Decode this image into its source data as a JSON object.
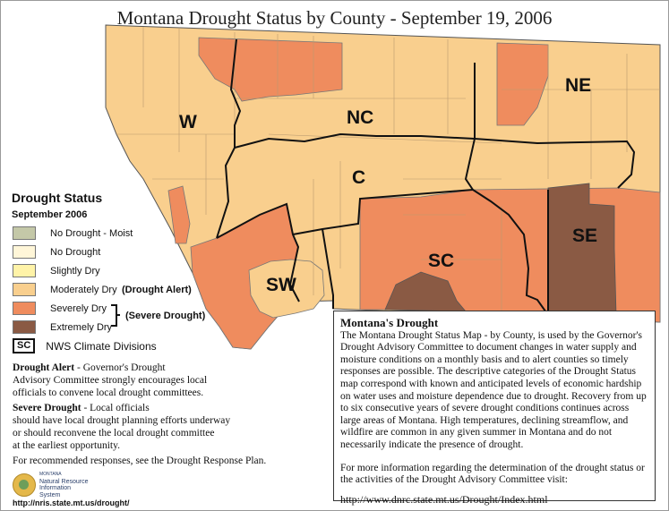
{
  "title": "Montana Drought Status by County - September 19, 2006",
  "colors": {
    "no_drought_moist": "#c4c8a8",
    "no_drought": "#fff6d8",
    "slightly_dry": "#fff3a8",
    "moderately_dry": "#f9cf8e",
    "severely_dry": "#ef8c5e",
    "extremely_dry": "#8a5a44"
  },
  "regions": {
    "w": "W",
    "nc": "NC",
    "ne": "NE",
    "c": "C",
    "sw": "SW",
    "sc": "SC",
    "se": "SE"
  },
  "legend": {
    "heading": "Drought Status",
    "subheading": "September 2006",
    "items": [
      {
        "label": "No Drought - Moist",
        "color": "#c4c8a8"
      },
      {
        "label": "No Drought",
        "color": "#fff6d8"
      },
      {
        "label": "Slightly Dry",
        "color": "#fff3a8"
      },
      {
        "label": "Moderately Dry",
        "color": "#f9cf8e"
      },
      {
        "label": "Severely Dry",
        "color": "#ef8c5e"
      },
      {
        "label": "Extremely Dry",
        "color": "#8a5a44"
      }
    ],
    "drought_alert_tag": "(Drought Alert)",
    "severe_drought_tag": "(Severe Drought)",
    "sc_box": "SC",
    "nws_label": "NWS Climate Divisions"
  },
  "descriptions": {
    "alert_term": "Drought Alert",
    "alert_text_1": " - Governor's Drought",
    "alert_text_2": "Advisory Committee strongly encourages local",
    "alert_text_3": "officials to convene local drought committees.",
    "severe_term": "Severe Drought",
    "severe_text_1": " - Local officials",
    "severe_text_2": "should have local drought planning efforts underway",
    "severe_text_3": "or should reconvene the local drought committee",
    "severe_text_4": "at the earliest opportunity.",
    "responses": "For recommended responses, see the Drought Response Plan."
  },
  "logo": {
    "line1": "MONTANA",
    "line2": "Natural Resource",
    "line3": "Information",
    "line4": "System"
  },
  "url": "http://nris.state.mt.us/drought/",
  "infobox": {
    "heading": "Montana's Drought",
    "body": "The Montana Drought Status Map - by County, is used by the Governor's Drought Advisory Committee to document changes in water supply and moisture conditions on a monthly basis and to alert counties so timely responses are possible. The descriptive categories of the Drought Status map correspond with known and anticipated levels of economic hardship on water uses and moisture dependence due to drought. Recovery from up to six consecutive years of severe drought conditions continues across large areas of Montana. High temperatures, declining streamflow, and wildfire are common in any given summer in Montana and do not necessarily indicate the presence of drought.",
    "more": "For more information regarding the determination of the drought status or the activities of the Drought Advisory Committee visit:",
    "link": "http://www.dnrc.state.mt.us/Drought/Index.html"
  }
}
